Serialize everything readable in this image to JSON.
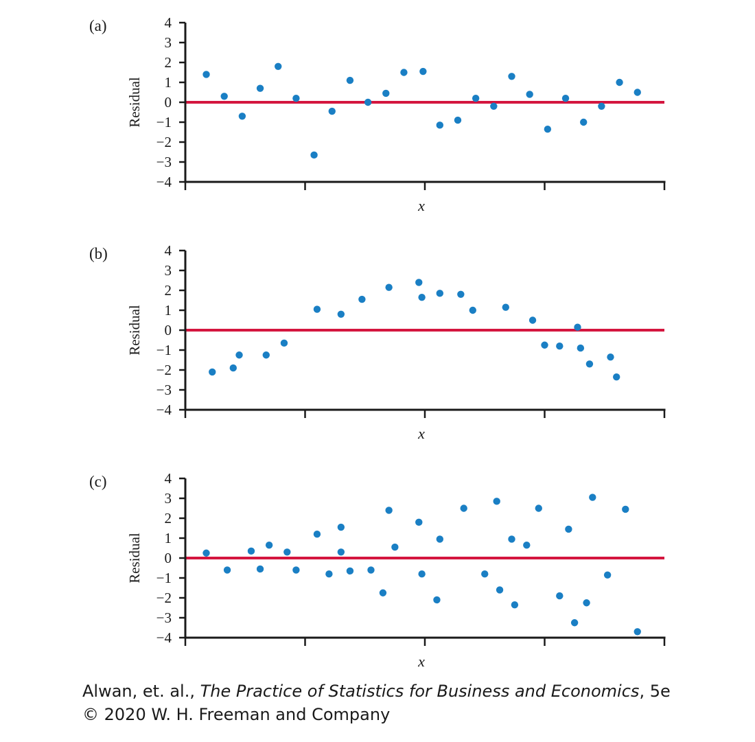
{
  "chart_data": [
    {
      "type": "scatter",
      "panel_label": "(a)",
      "xlabel": "x",
      "ylabel": "Residual",
      "ylim": [
        -4,
        4
      ],
      "yticks": [
        4,
        3,
        2,
        1,
        0,
        -1,
        -2,
        -3,
        -4
      ],
      "reference_line": 0,
      "points": [
        {
          "x": 0.35,
          "y": 1.4
        },
        {
          "x": 0.65,
          "y": 0.3
        },
        {
          "x": 0.95,
          "y": -0.7
        },
        {
          "x": 1.25,
          "y": 0.7
        },
        {
          "x": 1.55,
          "y": 1.8
        },
        {
          "x": 1.85,
          "y": 0.2
        },
        {
          "x": 2.15,
          "y": -2.65
        },
        {
          "x": 2.45,
          "y": -0.45
        },
        {
          "x": 2.75,
          "y": 1.1
        },
        {
          "x": 3.05,
          "y": 0.0
        },
        {
          "x": 3.35,
          "y": 0.45
        },
        {
          "x": 3.65,
          "y": 1.5
        },
        {
          "x": 3.97,
          "y": 1.55
        },
        {
          "x": 4.25,
          "y": -1.15
        },
        {
          "x": 4.55,
          "y": -0.9
        },
        {
          "x": 4.85,
          "y": 0.2
        },
        {
          "x": 5.15,
          "y": -0.2
        },
        {
          "x": 5.45,
          "y": 1.3
        },
        {
          "x": 5.75,
          "y": 0.4
        },
        {
          "x": 6.05,
          "y": -1.35
        },
        {
          "x": 6.35,
          "y": 0.2
        },
        {
          "x": 6.65,
          "y": -1.0
        },
        {
          "x": 6.95,
          "y": -0.2
        },
        {
          "x": 7.25,
          "y": 1.0
        },
        {
          "x": 7.55,
          "y": 0.5
        }
      ]
    },
    {
      "type": "scatter",
      "panel_label": "(b)",
      "xlabel": "x",
      "ylabel": "Residual",
      "ylim": [
        -4,
        4
      ],
      "yticks": [
        4,
        3,
        2,
        1,
        0,
        -1,
        -2,
        -3,
        -4
      ],
      "reference_line": 0,
      "points": [
        {
          "x": 0.45,
          "y": -2.1
        },
        {
          "x": 0.8,
          "y": -1.9
        },
        {
          "x": 0.9,
          "y": -1.25
        },
        {
          "x": 1.35,
          "y": -1.25
        },
        {
          "x": 1.65,
          "y": -0.65
        },
        {
          "x": 2.2,
          "y": 1.05
        },
        {
          "x": 2.6,
          "y": 0.8
        },
        {
          "x": 2.95,
          "y": 1.55
        },
        {
          "x": 3.4,
          "y": 2.15
        },
        {
          "x": 3.9,
          "y": 2.4
        },
        {
          "x": 3.95,
          "y": 1.65
        },
        {
          "x": 4.25,
          "y": 1.85
        },
        {
          "x": 4.6,
          "y": 1.8
        },
        {
          "x": 4.8,
          "y": 1.0
        },
        {
          "x": 5.35,
          "y": 1.15
        },
        {
          "x": 5.8,
          "y": 0.5
        },
        {
          "x": 6.0,
          "y": -0.75
        },
        {
          "x": 6.25,
          "y": -0.8
        },
        {
          "x": 6.55,
          "y": 0.15
        },
        {
          "x": 6.6,
          "y": -0.9
        },
        {
          "x": 6.75,
          "y": -1.7
        },
        {
          "x": 7.1,
          "y": -1.35
        },
        {
          "x": 7.2,
          "y": -2.35
        }
      ]
    },
    {
      "type": "scatter",
      "panel_label": "(c)",
      "xlabel": "x",
      "ylabel": "Residual",
      "ylim": [
        -4,
        4
      ],
      "yticks": [
        4,
        3,
        2,
        1,
        0,
        -1,
        -2,
        -3,
        -4
      ],
      "reference_line": 0,
      "points": [
        {
          "x": 0.35,
          "y": 0.25
        },
        {
          "x": 0.7,
          "y": -0.6
        },
        {
          "x": 1.1,
          "y": 0.35
        },
        {
          "x": 1.25,
          "y": -0.55
        },
        {
          "x": 1.4,
          "y": 0.65
        },
        {
          "x": 1.7,
          "y": 0.3
        },
        {
          "x": 1.85,
          "y": -0.6
        },
        {
          "x": 2.2,
          "y": 1.2
        },
        {
          "x": 2.4,
          "y": -0.8
        },
        {
          "x": 2.6,
          "y": 1.55
        },
        {
          "x": 2.6,
          "y": 0.3
        },
        {
          "x": 2.75,
          "y": -0.65
        },
        {
          "x": 3.1,
          "y": -0.6
        },
        {
          "x": 3.3,
          "y": -1.75
        },
        {
          "x": 3.4,
          "y": 2.4
        },
        {
          "x": 3.5,
          "y": 0.55
        },
        {
          "x": 3.9,
          "y": 1.8
        },
        {
          "x": 3.95,
          "y": -0.8
        },
        {
          "x": 4.2,
          "y": -2.1
        },
        {
          "x": 4.25,
          "y": 0.95
        },
        {
          "x": 4.65,
          "y": 2.5
        },
        {
          "x": 5.0,
          "y": -0.8
        },
        {
          "x": 5.2,
          "y": 2.85
        },
        {
          "x": 5.25,
          "y": -1.6
        },
        {
          "x": 5.45,
          "y": 0.95
        },
        {
          "x": 5.5,
          "y": -2.35
        },
        {
          "x": 5.7,
          "y": 0.65
        },
        {
          "x": 5.9,
          "y": 2.5
        },
        {
          "x": 6.25,
          "y": -1.9
        },
        {
          "x": 6.4,
          "y": 1.45
        },
        {
          "x": 6.5,
          "y": -3.25
        },
        {
          "x": 6.7,
          "y": -2.25
        },
        {
          "x": 6.8,
          "y": 3.05
        },
        {
          "x": 7.05,
          "y": -0.85
        },
        {
          "x": 7.35,
          "y": 2.45
        },
        {
          "x": 7.55,
          "y": -3.7
        }
      ]
    }
  ],
  "colors": {
    "points": "#1a7fc4",
    "reference_line": "#d4163f",
    "axis": "#1a1a1a"
  },
  "credit": {
    "line1_prefix": "Alwan, et. al., ",
    "line1_title": "The Practice of Statistics for Business and Economics",
    "line1_suffix": ", 5e",
    "line2": "© 2020 W. H. Freeman and Company"
  }
}
